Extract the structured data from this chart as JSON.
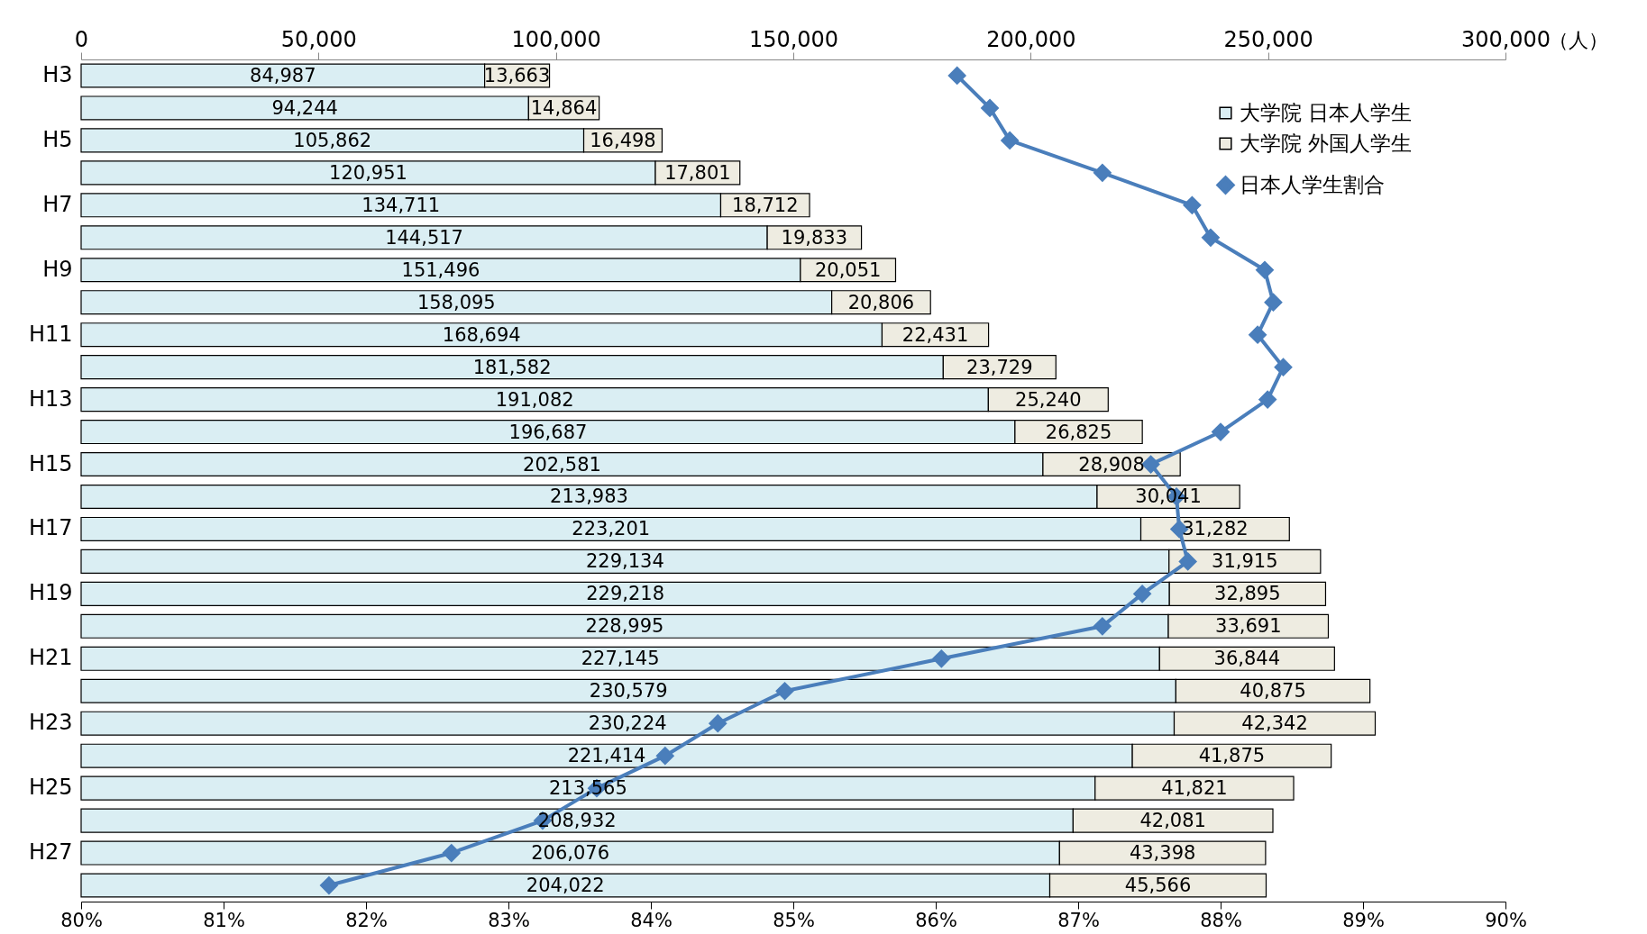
{
  "chart_data": {
    "type": "bar",
    "orientation": "horizontal",
    "stacked": true,
    "xlabel": "（人）",
    "categories": [
      "H3",
      null,
      "H5",
      null,
      "H7",
      null,
      "H9",
      null,
      "H11",
      null,
      "H13",
      null,
      "H15",
      null,
      "H17",
      null,
      "H19",
      null,
      "H21",
      null,
      "H23",
      null,
      "H25",
      null,
      "H27",
      null
    ],
    "series": [
      {
        "name": "大学院 日本人学生",
        "color": "#daeef3",
        "values": [
          84987,
          94244,
          105862,
          120951,
          134711,
          144517,
          151496,
          158095,
          168694,
          181582,
          191082,
          196687,
          202581,
          213983,
          223201,
          229134,
          229218,
          228995,
          227145,
          230579,
          230224,
          221414,
          213565,
          208932,
          206076,
          204022
        ],
        "value_labels": [
          "84,987",
          "94,244",
          "105,862",
          "120,951",
          "134,711",
          "144,517",
          "151,496",
          "158,095",
          "168,694",
          "181,582",
          "191,082",
          "196,687",
          "202,581",
          "213,983",
          "223,201",
          "229,134",
          "229,218",
          "228,995",
          "227,145",
          "230,579",
          "230,224",
          "221,414",
          "213,565",
          "208,932",
          "206,076",
          "204,022"
        ]
      },
      {
        "name": "大学院 外国人学生",
        "color": "#eeece1",
        "values": [
          13663,
          14864,
          16498,
          17801,
          18712,
          19833,
          20051,
          20806,
          22431,
          23729,
          25240,
          26825,
          28908,
          30041,
          31282,
          31915,
          32895,
          33691,
          36844,
          40875,
          42342,
          41875,
          41821,
          42081,
          43398,
          45566
        ],
        "value_labels": [
          "13,663",
          "14,864",
          "16,498",
          "17,801",
          "18,712",
          "19,833",
          "20,051",
          "20,806",
          "22,431",
          "23,729",
          "25,240",
          "26,825",
          "28,908",
          "30,041",
          "31,282",
          "31,915",
          "32,895",
          "33,691",
          "36,844",
          "40,875",
          "42,342",
          "41,875",
          "41,821",
          "42,081",
          "43,398",
          "45,566"
        ]
      },
      {
        "name": "日本人学生割合",
        "type": "line",
        "axis": "x2",
        "color": "#4a7ebb",
        "values": [
          86.15,
          86.38,
          86.52,
          87.17,
          87.8,
          87.93,
          88.31,
          88.37,
          88.26,
          88.44,
          88.33,
          88.0,
          87.51,
          87.69,
          87.71,
          87.77,
          87.45,
          87.17,
          86.04,
          84.94,
          84.47,
          84.1,
          83.62,
          83.24,
          82.6,
          81.74
        ]
      }
    ],
    "xlim": [
      0,
      300000
    ],
    "xticks": [
      0,
      {
        "value": 50000,
        "label": "50,000"
      },
      {
        "value": 100000,
        "label": "100,000"
      },
      {
        "value": 150000,
        "label": "150,000"
      },
      {
        "value": 200000,
        "label": "200,000"
      },
      {
        "value": 250000,
        "label": "250,000"
      },
      {
        "value": 300000,
        "label": "300,000"
      }
    ],
    "x2lim": [
      80,
      90
    ],
    "x2ticks": [
      {
        "value": 80,
        "label": "80%"
      },
      {
        "value": 81,
        "label": "81%"
      },
      {
        "value": 82,
        "label": "82%"
      },
      {
        "value": 83,
        "label": "83%"
      },
      {
        "value": 84,
        "label": "84%"
      },
      {
        "value": 85,
        "label": "85%"
      },
      {
        "value": 86,
        "label": "86%"
      },
      {
        "value": 87,
        "label": "87%"
      },
      {
        "value": 88,
        "label": "88%"
      },
      {
        "value": 89,
        "label": "89%"
      },
      {
        "value": 90,
        "label": "90%"
      }
    ],
    "legend": "top right",
    "marker": "diamond",
    "grid": false
  }
}
